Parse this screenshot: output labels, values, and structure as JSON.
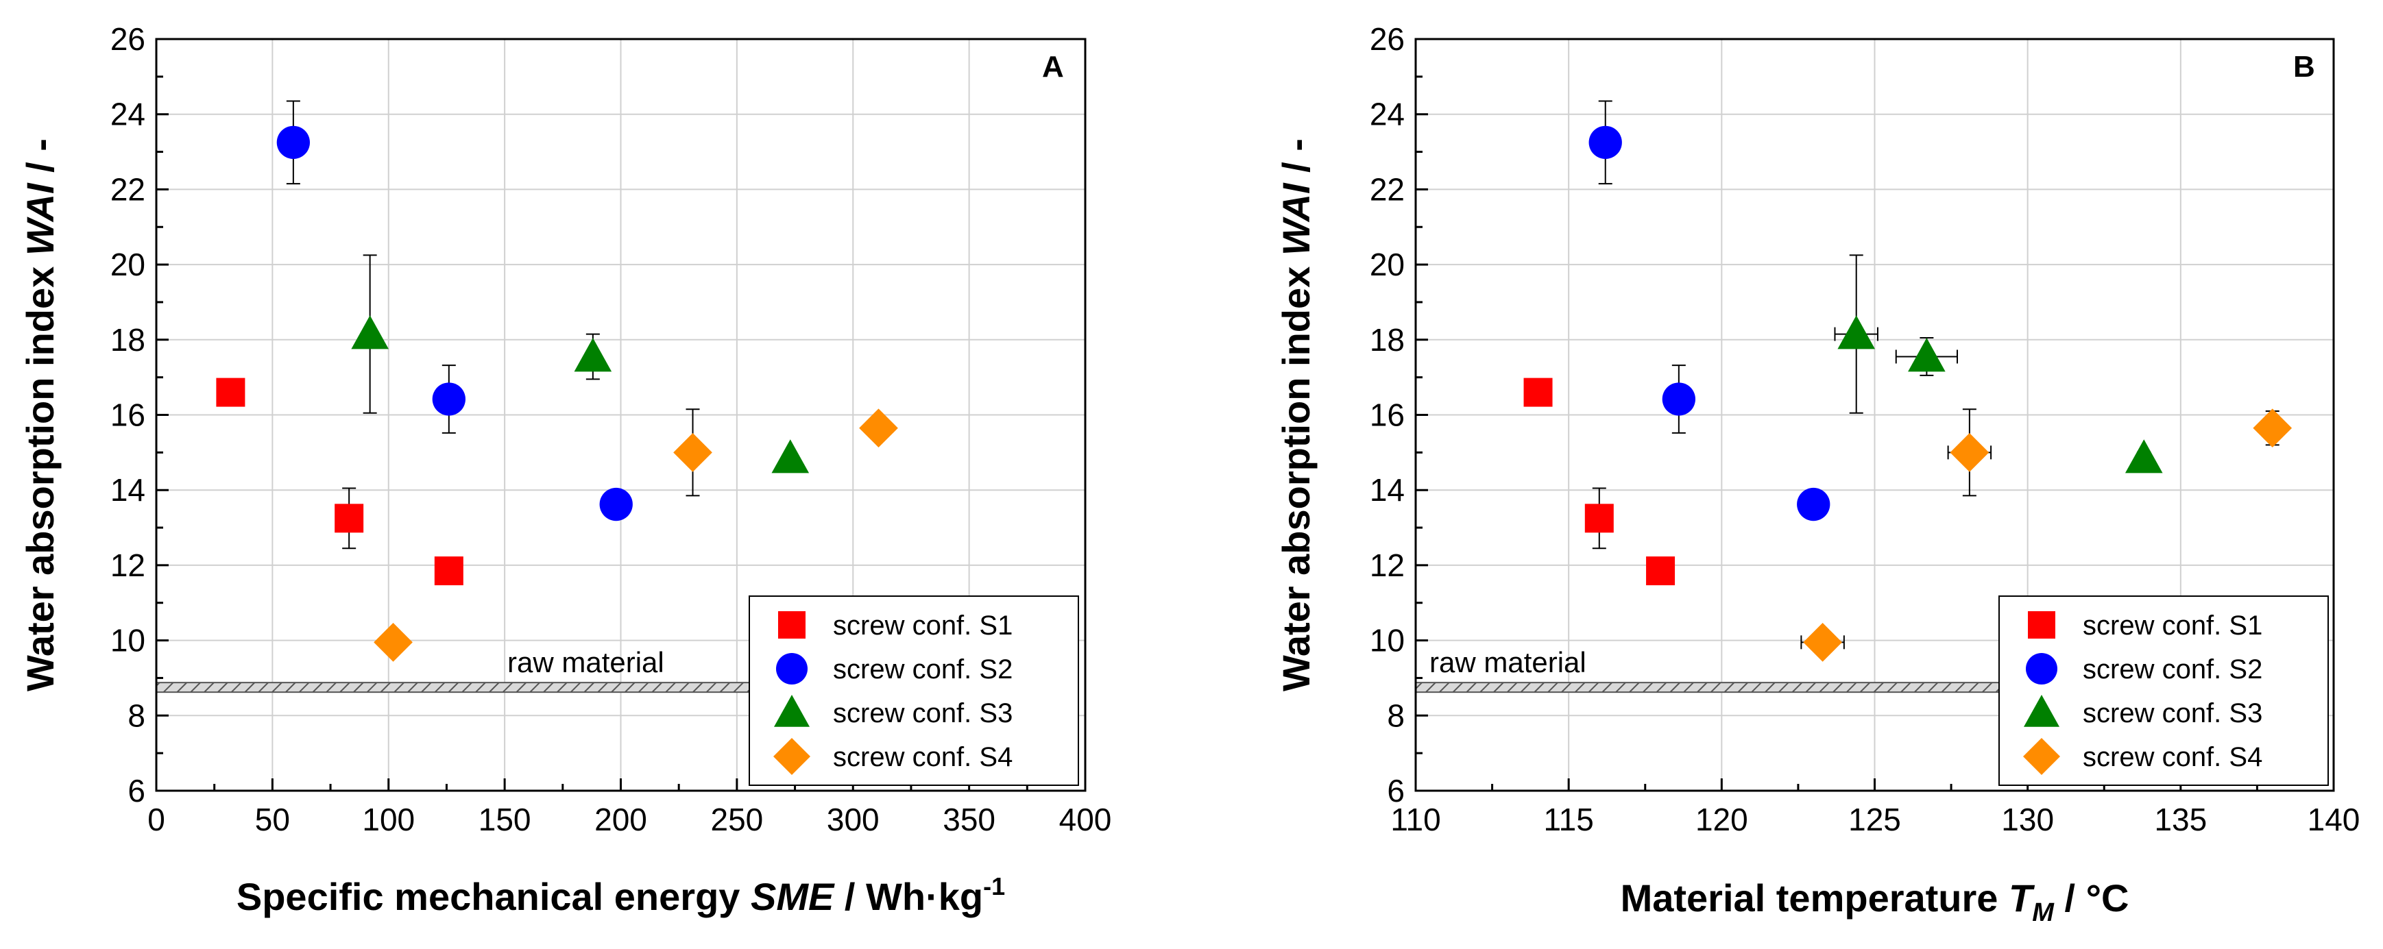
{
  "chart_data": [
    {
      "type": "scatter",
      "panel_label": "A",
      "xlabel_parts": [
        "Specific mechanical energy ",
        "SME",
        " / Wh",
        "·",
        "kg",
        "-1"
      ],
      "ylabel_parts": [
        "Water absorption index ",
        "WAI",
        " / -"
      ],
      "xlim": [
        0,
        400
      ],
      "ylim": [
        6,
        26
      ],
      "xticks": [
        "0",
        "50",
        "100",
        "150",
        "200",
        "250",
        "300",
        "350",
        "400"
      ],
      "yticks": [
        "6",
        "8",
        "10",
        "12",
        "14",
        "16",
        "18",
        "20",
        "22",
        "24",
        "26"
      ],
      "grid": true,
      "legend_position": "bottom-right",
      "reference_line": {
        "label": "raw material",
        "y": 8.75
      },
      "series": [
        {
          "name": "screw conf. S1",
          "marker": "square",
          "color": "#ff0000",
          "points": [
            {
              "x": 32,
              "y": 16.6,
              "yerr": 0.1
            },
            {
              "x": 83,
              "y": 13.25,
              "yerr": 0.8
            },
            {
              "x": 126,
              "y": 11.85,
              "yerr": 0.1
            }
          ]
        },
        {
          "name": "screw conf. S2",
          "marker": "circle",
          "color": "#0000ff",
          "points": [
            {
              "x": 59,
              "y": 23.25,
              "yerr": 1.1
            },
            {
              "x": 126,
              "y": 16.42,
              "yerr": 0.9
            },
            {
              "x": 198,
              "y": 13.62,
              "yerr": 0.1
            }
          ]
        },
        {
          "name": "screw conf. S3",
          "marker": "triangle",
          "color": "#008000",
          "points": [
            {
              "x": 92,
              "y": 18.15,
              "yerr": 2.1
            },
            {
              "x": 188,
              "y": 17.55,
              "yerr": 0.6
            },
            {
              "x": 273,
              "y": 14.85,
              "yerr": 0.1
            }
          ]
        },
        {
          "name": "screw conf. S4",
          "marker": "diamond",
          "color": "#ff8c00",
          "points": [
            {
              "x": 102,
              "y": 9.95,
              "yerr": 0.25
            },
            {
              "x": 231,
              "y": 15.0,
              "yerr": 1.15
            },
            {
              "x": 311,
              "y": 15.65,
              "yerr": 0.2
            }
          ]
        }
      ]
    },
    {
      "type": "scatter",
      "panel_label": "B",
      "xlabel_parts": [
        "Material temperature ",
        "T",
        "M",
        " / °C"
      ],
      "ylabel_parts": [
        "Water absorption index ",
        "WAI",
        " / -"
      ],
      "xlim": [
        110,
        140
      ],
      "ylim": [
        6,
        26
      ],
      "xticks": [
        "110",
        "115",
        "120",
        "125",
        "130",
        "135",
        "140"
      ],
      "yticks": [
        "6",
        "8",
        "10",
        "12",
        "14",
        "16",
        "18",
        "20",
        "22",
        "24",
        "26"
      ],
      "grid": true,
      "legend_position": "bottom-right",
      "reference_line": {
        "label": "raw material",
        "y": 8.75
      },
      "series": [
        {
          "name": "screw conf. S1",
          "marker": "square",
          "color": "#ff0000",
          "points": [
            {
              "x": 114.0,
              "y": 16.6,
              "yerr": 0.1,
              "xerr": 0.3
            },
            {
              "x": 116.0,
              "y": 13.25,
              "yerr": 0.8,
              "xerr": 0.1
            },
            {
              "x": 118.0,
              "y": 11.85,
              "yerr": 0.1,
              "xerr": 0.1
            }
          ]
        },
        {
          "name": "screw conf. S2",
          "marker": "circle",
          "color": "#0000ff",
          "points": [
            {
              "x": 116.2,
              "y": 23.25,
              "yerr": 1.1,
              "xerr": 0.1
            },
            {
              "x": 118.6,
              "y": 16.42,
              "yerr": 0.9,
              "xerr": 0.1
            },
            {
              "x": 123.0,
              "y": 13.62,
              "yerr": 0.1,
              "xerr": 0.1
            }
          ]
        },
        {
          "name": "screw conf. S3",
          "marker": "triangle",
          "color": "#008000",
          "points": [
            {
              "x": 124.4,
              "y": 18.15,
              "yerr": 2.1,
              "xerr": 0.7
            },
            {
              "x": 126.7,
              "y": 17.55,
              "yerr": 0.5,
              "xerr": 1.0
            },
            {
              "x": 133.8,
              "y": 14.85,
              "yerr": 0.1,
              "xerr": 0.2
            }
          ]
        },
        {
          "name": "screw conf. S4",
          "marker": "diamond",
          "color": "#ff8c00",
          "points": [
            {
              "x": 123.3,
              "y": 9.95,
              "yerr": 0.25,
              "xerr": 0.7
            },
            {
              "x": 128.1,
              "y": 15.0,
              "yerr": 1.15,
              "xerr": 0.7
            },
            {
              "x": 138.0,
              "y": 15.65,
              "yerr": 0.45,
              "xerr": 0.3
            }
          ]
        }
      ]
    }
  ]
}
